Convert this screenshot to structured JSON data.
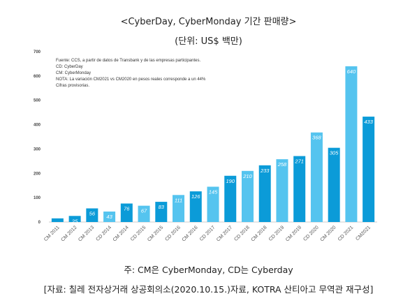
{
  "header": {
    "title": "<CyberDay, CyberMonday 기간 판매량>",
    "subtitle": "(단위: US$ 백만)"
  },
  "footer": {
    "note": "주: CM은 CyberMonday, CD는 Cyberday",
    "source": "[자료: 칠레 전자상거래 상공회의소(2020.10.15.)자료, KOTRA 산티아고 무역관 재구성]"
  },
  "chart_data": {
    "type": "bar",
    "title": "",
    "xlabel": "",
    "ylabel": "",
    "ylim": [
      0,
      700
    ],
    "yticks": [
      "0",
      "100",
      "200",
      "300",
      "400",
      "500",
      "600",
      "700"
    ],
    "grid": false,
    "categories": [
      "CM 2011",
      "CM 2012",
      "CM 2013",
      "CD 2014",
      "CM 2014",
      "CD 2015",
      "CM 2015",
      "CD 2016",
      "CM 2016",
      "CD 2017",
      "CM 2017",
      "CD 2018",
      "CM 2018",
      "CD 2019",
      "CM 2019",
      "CD 2020",
      "CM 2020",
      "CD 2021",
      "CM2021"
    ],
    "values": [
      15,
      25,
      56,
      43,
      76,
      67,
      83,
      111,
      126,
      145,
      190,
      210,
      233,
      258,
      271,
      368,
      305,
      640,
      433
    ],
    "value_labels": [
      "",
      "25",
      "56",
      "43",
      "76",
      "67",
      "83",
      "111",
      "126",
      "145",
      "190",
      "210",
      "233",
      "258",
      "271",
      "368",
      "305",
      "640",
      "433"
    ],
    "bar_colors": [
      "#0b9bd8",
      "#0b9bd8",
      "#0b9bd8",
      "#55c4ef",
      "#0b9bd8",
      "#55c4ef",
      "#0b9bd8",
      "#55c4ef",
      "#0b9bd8",
      "#55c4ef",
      "#0b9bd8",
      "#55c4ef",
      "#0b9bd8",
      "#55c4ef",
      "#0b9bd8",
      "#55c4ef",
      "#0b9bd8",
      "#55c4ef",
      "#0b9bd8"
    ],
    "annotation": [
      "Fuente: CCS, a partir de datos de Transbank y de las empresas participantes.",
      "CD: CyberDay",
      "CM: CyberMonday",
      "NOTA: La variación CM2021 vs CM2020 en pesos reales corresponde a un 44%",
      "Cifras provisorias."
    ]
  }
}
